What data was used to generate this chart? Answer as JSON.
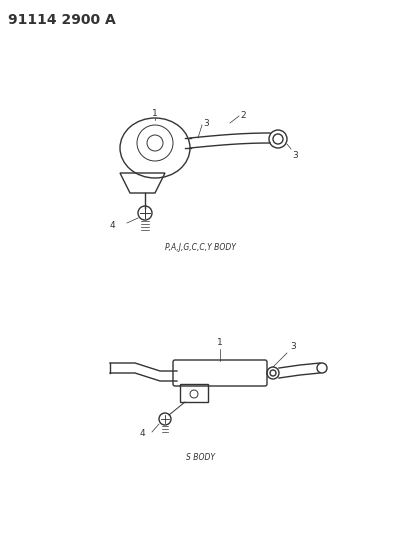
{
  "title": "91114 2900 A",
  "bg_color": "#ffffff",
  "line_color": "#333333",
  "label_color": "#333333",
  "caption1": "P,A,J,G,C,C,Y BODY",
  "caption2": "S BODY",
  "title_fontsize": 10,
  "caption_fontsize": 5.5,
  "label_fontsize": 6.5
}
